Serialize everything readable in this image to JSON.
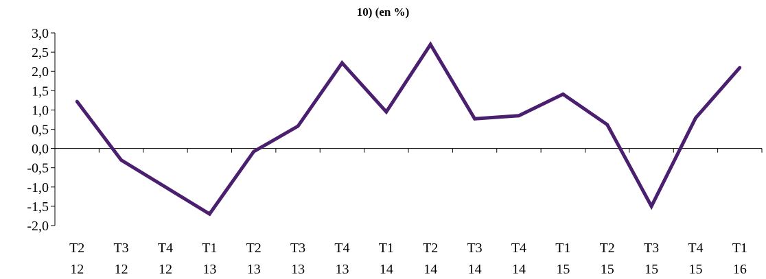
{
  "chart_data": {
    "type": "line",
    "title": "10) (en %)",
    "xlabel": "",
    "ylabel": "",
    "ylim": [
      -2.0,
      3.0
    ],
    "ytick_step": 0.5,
    "yticks": [
      "3,0",
      "2,5",
      "2,0",
      "1,5",
      "1,0",
      "0,5",
      "0,0",
      "-0,5",
      "-1,0",
      "-1,5",
      "-2,0"
    ],
    "categories": [
      [
        "T2",
        "12"
      ],
      [
        "T3",
        "12"
      ],
      [
        "T4",
        "12"
      ],
      [
        "T1",
        "13"
      ],
      [
        "T2",
        "13"
      ],
      [
        "T3",
        "13"
      ],
      [
        "T4",
        "13"
      ],
      [
        "T1",
        "14"
      ],
      [
        "T2",
        "14"
      ],
      [
        "T3",
        "14"
      ],
      [
        "T4",
        "14"
      ],
      [
        "T1",
        "15"
      ],
      [
        "T2",
        "15"
      ],
      [
        "T3",
        "15"
      ],
      [
        "T4",
        "15"
      ],
      [
        "T1",
        "16"
      ]
    ],
    "series": [
      {
        "values": [
          1.22,
          -0.3,
          -1.0,
          -1.7,
          -0.08,
          0.58,
          2.22,
          0.95,
          2.7,
          0.77,
          0.85,
          1.41,
          0.62,
          -1.5,
          0.79,
          2.1
        ],
        "color": "#4b1f6f"
      }
    ],
    "grid": false,
    "legend": "none"
  }
}
